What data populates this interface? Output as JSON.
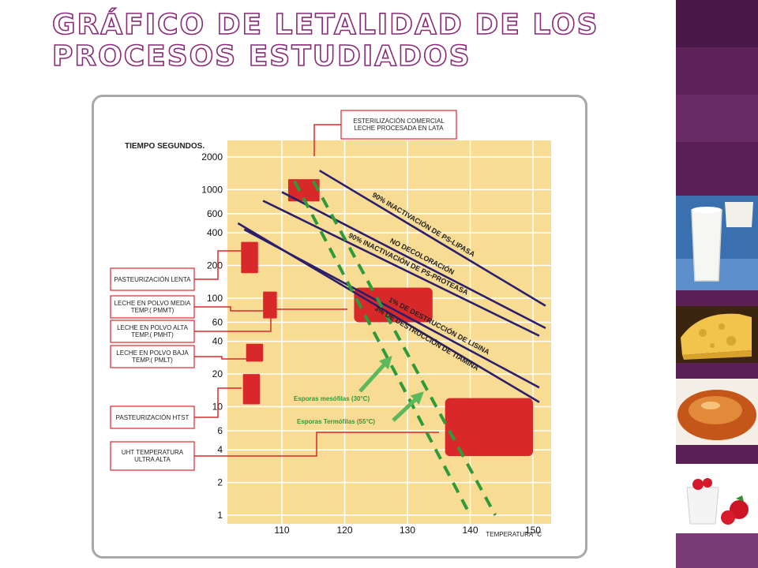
{
  "slide": {
    "title_line1": "Gráfico de letalidad de los",
    "title_line2": "procesos estudiados"
  },
  "colors": {
    "title_outline": "#8a2a78",
    "plot_background": "#f8dc94",
    "grid": "#ffffff",
    "process_box": "#d9282a",
    "inactivation_line": "#2b1f6b",
    "spore_line": "#2f9a3a",
    "strip": "#5a1f55"
  },
  "photos": [
    {
      "name": "milk-glass-photo"
    },
    {
      "name": "cheese-photo"
    },
    {
      "name": "caramel-dessert-photo"
    },
    {
      "name": "strawberry-yogurt-photo"
    }
  ],
  "chart_data": {
    "type": "line",
    "title": "",
    "xlabel": "TEMPERATURA °C",
    "ylabel": "TIEMPO SEGUNDOS.",
    "xlim": [
      100,
      153
    ],
    "ylim": [
      1,
      2400
    ],
    "yscale": "log",
    "x_ticks": [
      110,
      120,
      130,
      140,
      150
    ],
    "y_ticks": [
      1,
      2,
      4,
      6,
      10,
      20,
      40,
      60,
      100,
      200,
      400,
      600,
      1000,
      2000
    ],
    "grid": true,
    "series": [
      {
        "name": "90% INACTIVACIÓN DE PS-LIPASA",
        "style": "solid",
        "points": [
          [
            116,
            1500
          ],
          [
            152,
            85
          ]
        ]
      },
      {
        "name": "NO DECOLORACIÓN",
        "style": "solid",
        "points": [
          [
            110,
            950
          ],
          [
            152,
            53
          ]
        ]
      },
      {
        "name": "90% INACTIVACIÓN DE PS-PROTEASA",
        "style": "solid",
        "points": [
          [
            107,
            790
          ],
          [
            151,
            45
          ]
        ]
      },
      {
        "name": "1% DE DESTRUCCIÓN DE LISINA",
        "style": "solid",
        "points": [
          [
            104,
            430
          ],
          [
            151,
            15
          ]
        ]
      },
      {
        "name": "3% DE DESTRUCCIÓN DE TIAMINA",
        "style": "solid",
        "points": [
          [
            103,
            490
          ],
          [
            151,
            11
          ]
        ]
      },
      {
        "name": "Esporas mesófilas (30°C)",
        "style": "dashed",
        "points": [
          [
            112,
            1200
          ],
          [
            140,
            1
          ]
        ]
      },
      {
        "name": "Esporas Termófilas (55°C)",
        "style": "dashed",
        "points": [
          [
            115,
            1200
          ],
          [
            144,
            1
          ]
        ]
      }
    ],
    "regions": [
      {
        "label": "ESTERILIZACIÓN COMERCIAL LECHE PROCESADA EN LATA",
        "x": [
          111,
          116
        ],
        "y": [
          780,
          1250
        ]
      },
      {
        "label": "PASTEURIZACIÓN LENTA",
        "x": [
          103.5,
          106.2
        ],
        "y": [
          170,
          330
        ]
      },
      {
        "label": "LECHE EN POLVO MEDIA TEMP.( PMMT)",
        "x": [
          107,
          109.2
        ],
        "y": [
          65,
          115
        ]
      },
      {
        "label": "LECHE EN POLVO ALTA TEMP.( PMHT)",
        "x": [
          121.5,
          134
        ],
        "y": [
          60,
          125
        ]
      },
      {
        "label": "LECHE EN POLVO BAJA TEMP.( PMLT)",
        "x": [
          104.3,
          107
        ],
        "y": [
          26,
          38
        ]
      },
      {
        "label": "PASTEURIZACIÓN HTST",
        "x": [
          103.8,
          106.5
        ],
        "y": [
          10.5,
          20
        ]
      },
      {
        "label": "UHT TEMPERATURA ULTRA ALTA",
        "x": [
          136,
          150
        ],
        "y": [
          3.5,
          12
        ]
      }
    ],
    "annotations": [
      {
        "text": "Esporas mesófilas (30°C)",
        "arrow": true
      },
      {
        "text": "Esporas Termófilas (55°C)",
        "arrow": true
      }
    ]
  }
}
